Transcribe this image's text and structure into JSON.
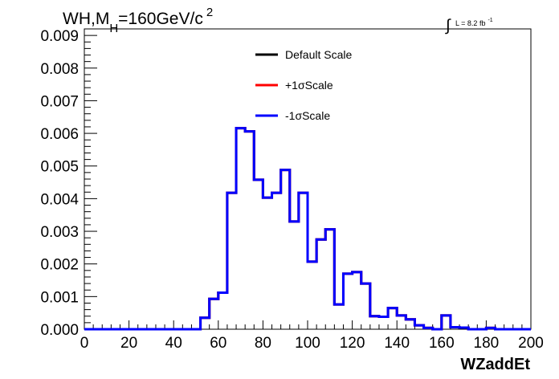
{
  "chart_data": {
    "type": "line",
    "title": {
      "main": "WH,M",
      "subscript": "H",
      "rest": "=160GeV/c",
      "superscript": "2"
    },
    "lumi": {
      "integral_symbol": "∫",
      "text": "L = 8.2 fb",
      "superscript": "-1"
    },
    "xlabel": "WZaddEt",
    "ylabel": "",
    "xlim": [
      0,
      200
    ],
    "ylim": [
      0,
      0.0092
    ],
    "x_ticks": [
      "0",
      "20",
      "40",
      "60",
      "80",
      "100",
      "120",
      "140",
      "160",
      "180",
      "200"
    ],
    "x_tick_values": [
      0,
      20,
      40,
      60,
      80,
      100,
      120,
      140,
      160,
      180,
      200
    ],
    "y_ticks": [
      "0.000",
      "0.001",
      "0.002",
      "0.003",
      "0.004",
      "0.005",
      "0.006",
      "0.007",
      "0.008",
      "0.009"
    ],
    "y_tick_values": [
      0,
      0.001,
      0.002,
      0.003,
      0.004,
      0.005,
      0.006,
      0.007,
      0.008,
      0.009
    ],
    "bin_edges": [
      0,
      4,
      8,
      12,
      16,
      20,
      24,
      28,
      32,
      36,
      40,
      44,
      48,
      52,
      56,
      60,
      64,
      68,
      72,
      76,
      80,
      84,
      88,
      92,
      96,
      100,
      104,
      108,
      112,
      116,
      120,
      124,
      128,
      132,
      136,
      140,
      144,
      148,
      152,
      156,
      160,
      164,
      168,
      172,
      176,
      180,
      184,
      188,
      192,
      196,
      200
    ],
    "legend": [
      {
        "label": "Default Scale",
        "color": "#000000"
      },
      {
        "label": "+1σScale",
        "color": "#ff0000"
      },
      {
        "label": "-1σScale",
        "color": "#0000ff"
      }
    ],
    "legend_position": "top-center",
    "grid": false,
    "series": [
      {
        "name": "Default Scale",
        "color": "#000000",
        "values": [
          0,
          0,
          0,
          0,
          0,
          0,
          0,
          0,
          0,
          0,
          0,
          0,
          0,
          0.00035,
          0.00093,
          0.00112,
          0.00418,
          0.00616,
          0.00606,
          0.00458,
          0.00403,
          0.00418,
          0.00488,
          0.0033,
          0.00418,
          0.00207,
          0.00275,
          0.00306,
          0.00076,
          0.0017,
          0.00175,
          0.0014,
          0.0004,
          0.00038,
          0.00065,
          0.00042,
          0.0003,
          0.00012,
          4e-05,
          0,
          0.00042,
          6e-05,
          5e-05,
          0,
          0,
          4e-05,
          0,
          0,
          0,
          0
        ]
      },
      {
        "name": "+1σScale",
        "color": "#ff0000",
        "values": [
          0,
          0,
          0,
          0,
          0,
          0,
          0,
          0,
          0,
          0,
          0,
          0,
          0,
          0.00035,
          0.00093,
          0.00112,
          0.00418,
          0.00616,
          0.00606,
          0.00458,
          0.00403,
          0.00418,
          0.00488,
          0.0033,
          0.00418,
          0.00207,
          0.00275,
          0.00306,
          0.00076,
          0.0017,
          0.00175,
          0.0014,
          0.0004,
          0.00038,
          0.00065,
          0.00042,
          0.0003,
          0.00012,
          4e-05,
          0,
          0.00042,
          6e-05,
          5e-05,
          0,
          0,
          4e-05,
          0,
          0,
          0,
          0
        ]
      },
      {
        "name": "-1σScale",
        "color": "#0000ff",
        "values": [
          0,
          0,
          0,
          0,
          0,
          0,
          0,
          0,
          0,
          0,
          0,
          0,
          0,
          0.00035,
          0.00093,
          0.00112,
          0.00418,
          0.00616,
          0.00606,
          0.00458,
          0.00403,
          0.00418,
          0.00488,
          0.0033,
          0.00418,
          0.00207,
          0.00275,
          0.00306,
          0.00076,
          0.0017,
          0.00175,
          0.0014,
          0.0004,
          0.00038,
          0.00065,
          0.00042,
          0.0003,
          0.00012,
          4e-05,
          0,
          0.00042,
          6e-05,
          5e-05,
          0,
          0,
          4e-05,
          0,
          0,
          0,
          0
        ]
      }
    ]
  }
}
